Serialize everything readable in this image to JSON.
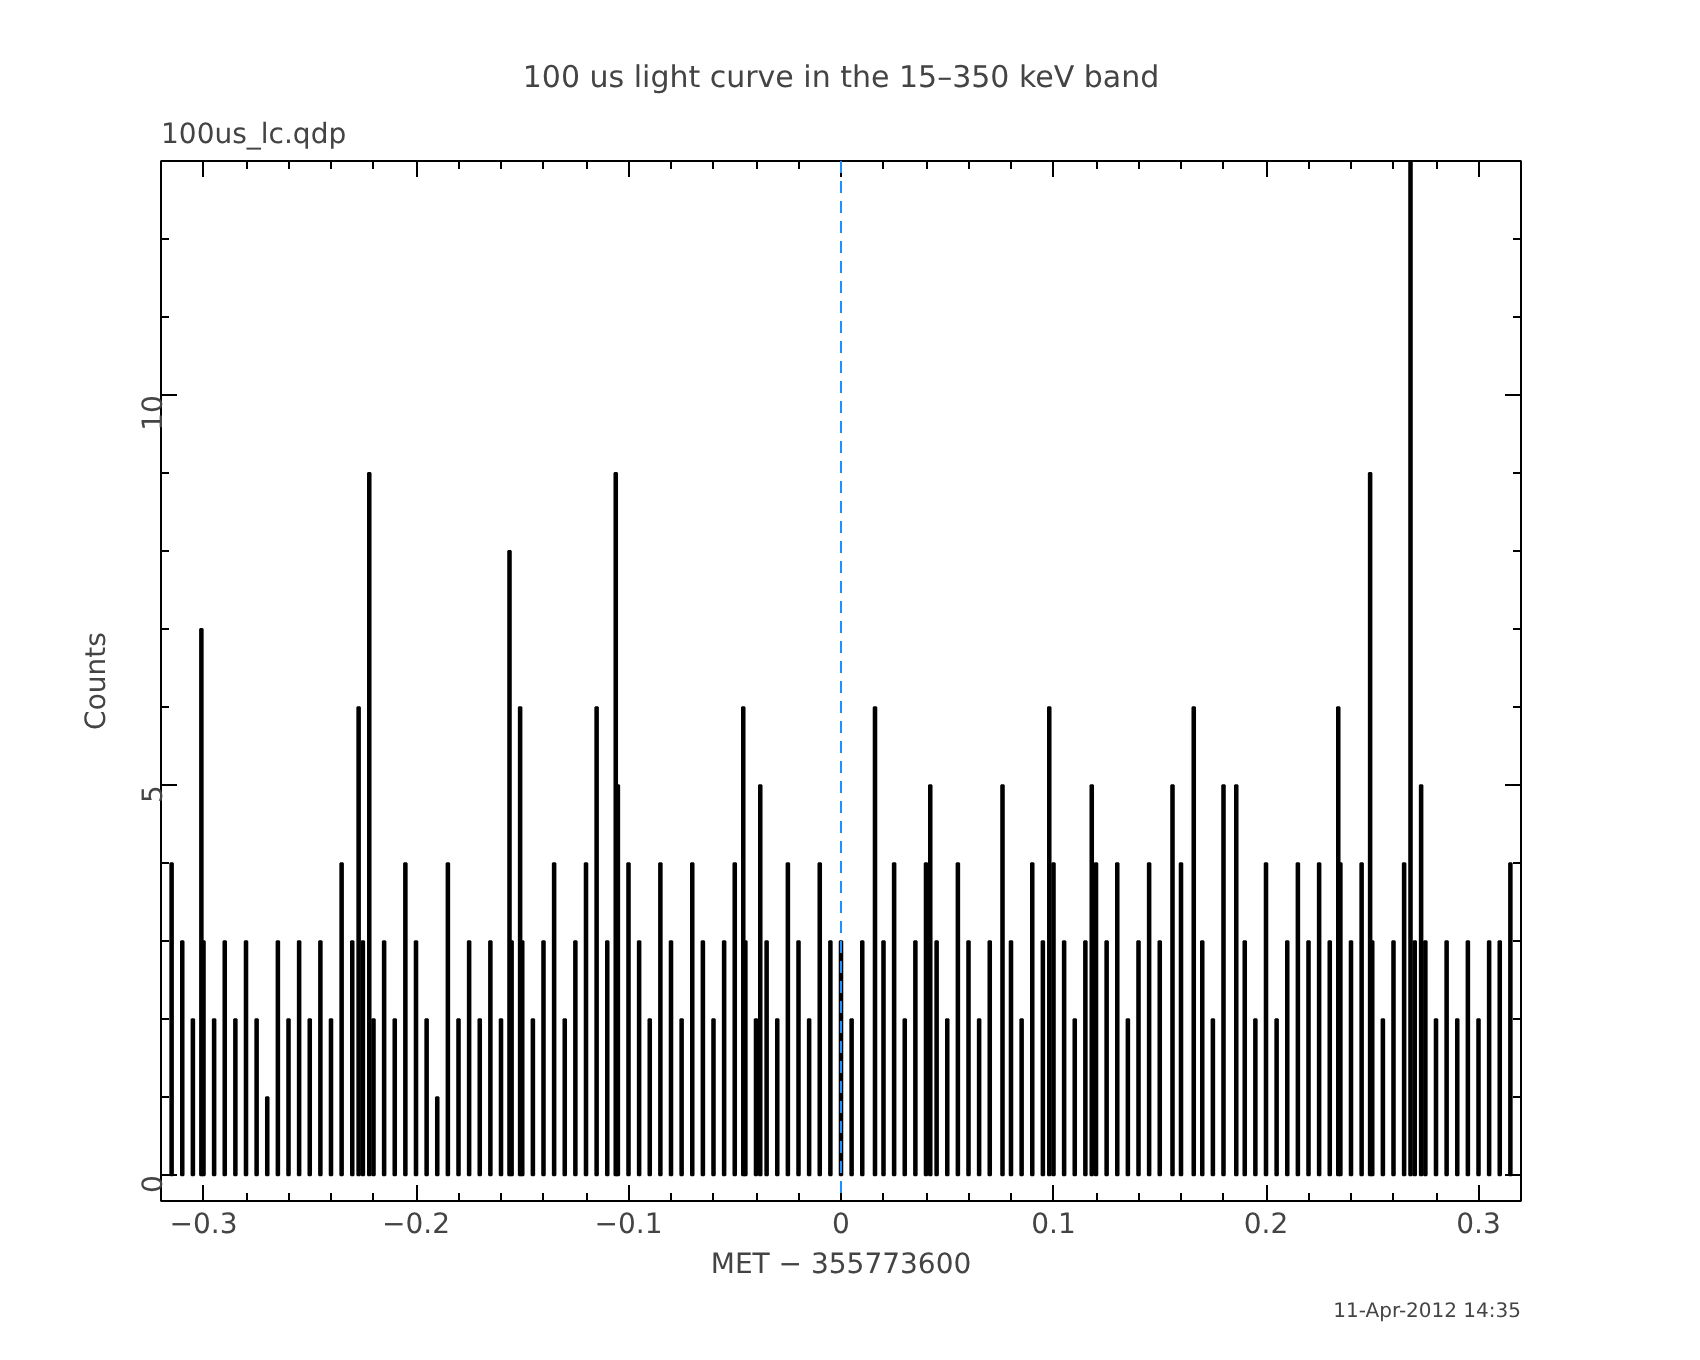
{
  "chart_data": {
    "type": "bar",
    "title": "100 us light curve in the 15–350 keV band",
    "xlabel": "MET − 355773600",
    "ylabel": "Counts",
    "annotations": [
      "100us_lc.qdp",
      "11-Apr-2012 14:35"
    ],
    "xlim": [
      -0.32,
      0.32
    ],
    "ylim": [
      -0.33,
      13
    ],
    "xticks": [
      {
        "value": -0.3,
        "label": "−0.3"
      },
      {
        "value": -0.2,
        "label": "−0.2"
      },
      {
        "value": -0.1,
        "label": "−0.1"
      },
      0,
      0.1,
      0.2,
      0.3
    ],
    "yticks": [
      0,
      5,
      10
    ],
    "grid": false,
    "ref_lines": [
      {
        "axis": "x",
        "value": 0,
        "color": "#1e90ff",
        "line_style": "dashed"
      }
    ],
    "x": [
      -0.315,
      -0.31,
      -0.305,
      -0.301,
      -0.3,
      -0.295,
      -0.29,
      -0.285,
      -0.28,
      -0.275,
      -0.27,
      -0.265,
      -0.26,
      -0.255,
      -0.25,
      -0.245,
      -0.24,
      -0.235,
      -0.23,
      -0.227,
      -0.225,
      -0.222,
      -0.22,
      -0.215,
      -0.21,
      -0.205,
      -0.2,
      -0.195,
      -0.19,
      -0.185,
      -0.18,
      -0.175,
      -0.17,
      -0.165,
      -0.16,
      -0.156,
      -0.155,
      -0.151,
      -0.15,
      -0.145,
      -0.14,
      -0.135,
      -0.13,
      -0.125,
      -0.12,
      -0.115,
      -0.11,
      -0.106,
      -0.105,
      -0.1,
      -0.095,
      -0.09,
      -0.085,
      -0.08,
      -0.075,
      -0.07,
      -0.065,
      -0.06,
      -0.055,
      -0.05,
      -0.046,
      -0.045,
      -0.04,
      -0.038,
      -0.035,
      -0.03,
      -0.025,
      -0.02,
      -0.015,
      -0.01,
      -0.005,
      0,
      0.005,
      0.01,
      0.016,
      0.02,
      0.025,
      0.03,
      0.035,
      0.04,
      0.042,
      0.045,
      0.05,
      0.055,
      0.06,
      0.065,
      0.07,
      0.076,
      0.08,
      0.085,
      0.09,
      0.095,
      0.098,
      0.1,
      0.105,
      0.11,
      0.115,
      0.118,
      0.12,
      0.125,
      0.13,
      0.135,
      0.14,
      0.145,
      0.15,
      0.156,
      0.16,
      0.166,
      0.17,
      0.175,
      0.18,
      0.186,
      0.19,
      0.195,
      0.2,
      0.205,
      0.21,
      0.215,
      0.22,
      0.225,
      0.23,
      0.234,
      0.235,
      0.24,
      0.245,
      0.249,
      0.25,
      0.255,
      0.26,
      0.265,
      0.268,
      0.27,
      0.273,
      0.275,
      0.28,
      0.285,
      0.29,
      0.295,
      0.3,
      0.305,
      0.31,
      0.315
    ],
    "values": [
      4,
      3,
      2,
      7,
      3,
      2,
      3,
      2,
      3,
      2,
      1,
      3,
      2,
      3,
      2,
      3,
      2,
      4,
      3,
      6,
      3,
      9,
      2,
      3,
      2,
      4,
      3,
      2,
      1,
      4,
      2,
      3,
      2,
      3,
      2,
      8,
      3,
      6,
      3,
      2,
      3,
      4,
      2,
      3,
      4,
      6,
      3,
      9,
      5,
      4,
      3,
      2,
      4,
      3,
      2,
      4,
      3,
      2,
      3,
      4,
      6,
      3,
      2,
      5,
      3,
      2,
      4,
      3,
      2,
      4,
      3,
      3,
      2,
      3,
      6,
      3,
      4,
      2,
      3,
      4,
      5,
      3,
      2,
      4,
      3,
      2,
      3,
      5,
      3,
      2,
      4,
      3,
      6,
      4,
      3,
      2,
      3,
      5,
      4,
      3,
      4,
      2,
      3,
      4,
      3,
      5,
      4,
      6,
      3,
      2,
      5,
      5,
      3,
      2,
      4,
      2,
      3,
      4,
      3,
      4,
      3,
      6,
      4,
      3,
      4,
      9,
      3,
      2,
      3,
      4,
      13,
      3,
      5,
      3,
      2,
      3,
      2,
      3,
      2,
      3,
      3,
      4
    ],
    "color": "#000000"
  }
}
